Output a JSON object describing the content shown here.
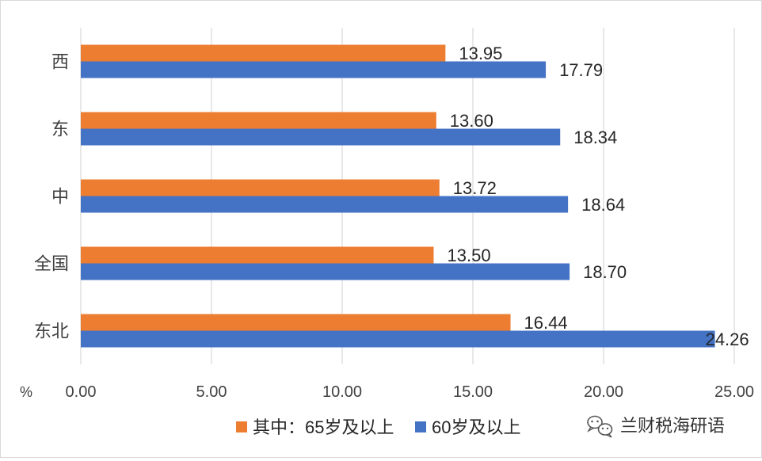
{
  "chart_data": {
    "type": "bar",
    "orientation": "horizontal",
    "categories": [
      "东北",
      "全国",
      "中",
      "东",
      "西"
    ],
    "series": [
      {
        "name": "其中：65岁及以上",
        "values": [
          16.44,
          13.5,
          13.72,
          13.6,
          13.95
        ],
        "labels": [
          "16.44",
          "13.50",
          "13.72",
          "13.60",
          "13.95"
        ],
        "color": "#ED7D31"
      },
      {
        "name": "60岁及以上",
        "values": [
          24.26,
          18.7,
          18.64,
          18.34,
          17.79
        ],
        "labels": [
          "24.26",
          "18.70",
          "18.64",
          "18.34",
          "17.79"
        ],
        "color": "#4472C4"
      }
    ],
    "xlim": [
      0,
      25
    ],
    "xticks": [
      0,
      5,
      10,
      15,
      20,
      25
    ],
    "xtick_labels": [
      "0.00",
      "5.00",
      "10.00",
      "15.00",
      "20.00",
      "25.00"
    ],
    "unit_label": "%",
    "grid": true,
    "legend_position": "bottom",
    "gridline_color": "#d9d9d9"
  },
  "watermark": {
    "text": "兰财税海研语",
    "icon": "wechat-icon"
  }
}
